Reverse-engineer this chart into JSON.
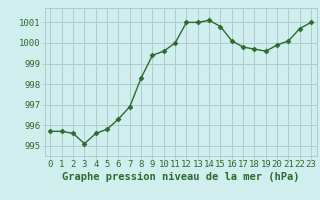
{
  "x": [
    0,
    1,
    2,
    3,
    4,
    5,
    6,
    7,
    8,
    9,
    10,
    11,
    12,
    13,
    14,
    15,
    16,
    17,
    18,
    19,
    20,
    21,
    22,
    23
  ],
  "y": [
    995.7,
    995.7,
    995.6,
    995.1,
    995.6,
    995.8,
    996.3,
    996.9,
    998.3,
    999.4,
    999.6,
    1000.0,
    1001.0,
    1001.0,
    1001.1,
    1000.8,
    1000.1,
    999.8,
    999.7,
    999.6,
    999.9,
    1000.1,
    1000.7,
    1001.0
  ],
  "line_color": "#2d6a2d",
  "marker": "D",
  "marker_size": 2.5,
  "bg_color": "#d0eeee",
  "grid_color": "#b0cccc",
  "xlabel": "Graphe pression niveau de la mer (hPa)",
  "xlabel_fontsize": 7.5,
  "ylabel_ticks": [
    995,
    996,
    997,
    998,
    999,
    1000,
    1001
  ],
  "xlim": [
    -0.5,
    23.5
  ],
  "ylim": [
    994.5,
    1001.7
  ],
  "tick_fontsize": 6.5,
  "tick_color": "#2d6a2d"
}
